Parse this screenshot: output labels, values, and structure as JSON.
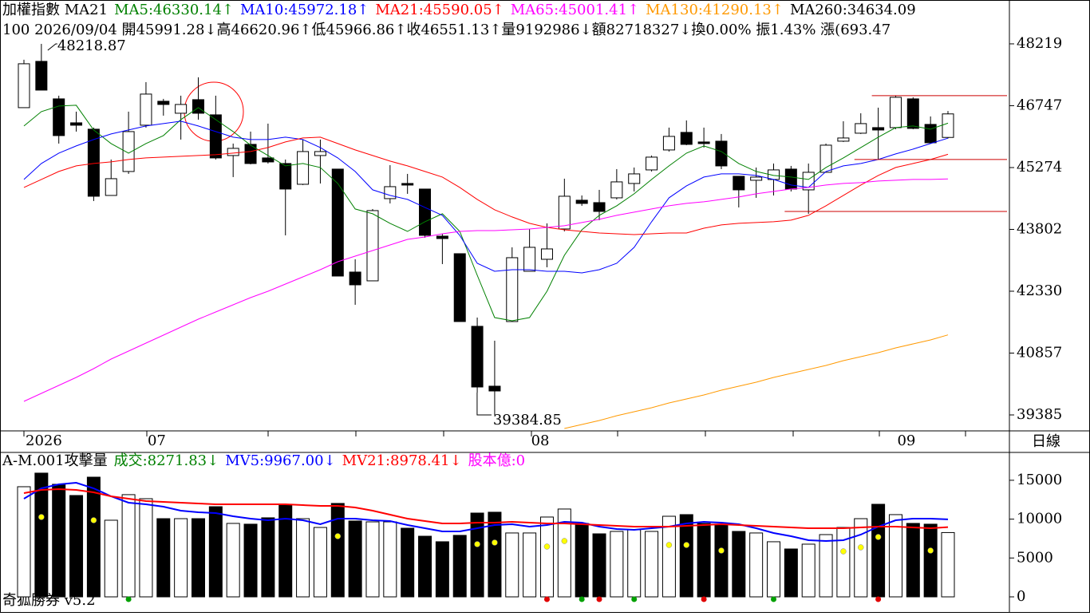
{
  "header": {
    "line1": [
      {
        "text": "加權指數 MA21",
        "color": "#000000"
      },
      {
        "text": "MA5:46330.14↑",
        "color": "#008000"
      },
      {
        "text": "MA10:45972.18↑",
        "color": "#0000ff"
      },
      {
        "text": "MA21:45590.05↑",
        "color": "#ff0000"
      },
      {
        "text": "MA65:45001.41↑",
        "color": "#ff00ff"
      },
      {
        "text": "MA130:41290.13↑",
        "color": "#ff9900"
      },
      {
        "text": "MA260:34634.09",
        "color": "#000000"
      }
    ],
    "line2": "100 2026/09/04 開45991.28↓高46620.96↑低45966.86↑收46551.13↑量9192986↓額82718327↓換0.00% 振1.43% 漲(693.47"
  },
  "period_label": "日線",
  "footer": "奇狐勝券 v5.2",
  "chart_data": [
    {
      "type": "candlestick",
      "categories": [
        "2026",
        null,
        null,
        null,
        null,
        null,
        null,
        "07",
        null,
        null,
        null,
        null,
        null,
        null,
        null,
        null,
        null,
        null,
        null,
        null,
        null,
        null,
        null,
        null,
        null,
        null,
        null,
        null,
        null,
        "08",
        null,
        null,
        null,
        null,
        null,
        null,
        null,
        null,
        null,
        null,
        null,
        null,
        null,
        null,
        null,
        null,
        null,
        null,
        null,
        null,
        "09",
        null,
        null,
        null
      ],
      "open": [
        46700,
        47802,
        46909,
        46339,
        46187,
        44610,
        45180,
        46282,
        46852,
        46567,
        46890,
        46529,
        45560,
        45826,
        45503,
        45370,
        44876,
        45560,
        45237,
        42786,
        42577,
        44534,
        44895,
        44762,
        43641,
        43223,
        41494,
        40069,
        41608,
        42805,
        43090,
        43812,
        44496,
        44439,
        44553,
        44895,
        45218,
        45693,
        46111,
        45883,
        45902,
        45066,
        44971,
        44990,
        45237,
        44743,
        45161,
        45902,
        46092,
        46225,
        46225,
        46909,
        46301,
        45991.28
      ],
      "high": [
        47840,
        48218.87,
        46985,
        46605,
        46225,
        45465,
        46605,
        47308,
        46909,
        46985,
        47422,
        46985,
        45845,
        46130,
        46320,
        45465,
        45940,
        45940,
        45237,
        43090,
        44287,
        45332,
        45123,
        44762,
        43698,
        43223,
        41703,
        41152,
        43375,
        43812,
        43945,
        45009,
        44610,
        44743,
        45237,
        45275,
        45560,
        46225,
        46396,
        46225,
        46073,
        45066,
        45275,
        45370,
        45313,
        45370,
        45845,
        46377,
        46567,
        46700,
        46985,
        46947,
        46491,
        46620.96
      ],
      "low": [
        46700,
        47118,
        45845,
        46130,
        44477,
        44610,
        45123,
        46225,
        46510,
        45940,
        46415,
        45465,
        45047,
        45351,
        45370,
        43660,
        44857,
        44895,
        42691,
        42007,
        42577,
        44420,
        44648,
        43603,
        42976,
        41608,
        39917,
        39384.85,
        41608,
        42805,
        42900,
        43755,
        44363,
        44021,
        44515,
        44705,
        45180,
        45655,
        45807,
        45750,
        45237,
        44325,
        44553,
        44610,
        44705,
        44173,
        45161,
        45883,
        46073,
        45465,
        46187,
        46187,
        45845,
        45966.86
      ],
      "close": [
        47745,
        47118,
        46035,
        46282,
        44591,
        45009,
        46130,
        47023,
        46776,
        46776,
        46567,
        45503,
        45731,
        45370,
        45408,
        44762,
        45655,
        45655,
        42691,
        42482,
        44249,
        44819,
        44857,
        43660,
        43584,
        41608,
        40050,
        39955,
        43128,
        43375,
        43337,
        44591,
        44420,
        44230,
        44933,
        45123,
        45522,
        46016,
        45826,
        45845,
        45313,
        44743,
        45047,
        45218,
        44762,
        45161,
        45807,
        45978,
        46320,
        46168,
        46947,
        46206,
        45864,
        46551.13
      ],
      "series": [
        {
          "name": "MA5",
          "color": "#008000",
          "values": [
            46263,
            46605,
            46738,
            46757,
            46168,
            45845,
            45617,
            45845,
            46035,
            46415,
            46700,
            46415,
            46130,
            45807,
            45560,
            45313,
            45370,
            45275,
            44895,
            44287,
            44173,
            43945,
            43755,
            43983,
            44173,
            43755,
            42710,
            41703,
            41627,
            41703,
            42330,
            43185,
            43793,
            44135,
            44363,
            44648,
            44990,
            45313,
            45617,
            45788,
            45655,
            45370,
            45180,
            45085,
            45047,
            44990,
            45275,
            45503,
            45750,
            45997,
            46225,
            46263,
            46187,
            46330.14
          ]
        },
        {
          "name": "MA10",
          "color": "#0000ff",
          "values": [
            44990,
            45370,
            45617,
            45788,
            45940,
            46073,
            46168,
            46263,
            46320,
            46377,
            46263,
            46130,
            45997,
            45940,
            45940,
            45997,
            45940,
            45750,
            45503,
            45180,
            44743,
            44610,
            44515,
            44325,
            44135,
            43660,
            42995,
            42805,
            42843,
            42843,
            42805,
            42805,
            42767,
            42843,
            42995,
            43375,
            43983,
            44553,
            44838,
            45047,
            45123,
            45123,
            45085,
            44990,
            44857,
            44800,
            45180,
            45313,
            45370,
            45465,
            45598,
            45712,
            45845,
            45972.18
          ]
        },
        {
          "name": "MA21",
          "color": "#ff0000",
          "values": [
            44800,
            44990,
            45180,
            45313,
            45370,
            45408,
            45465,
            45503,
            45522,
            45541,
            45560,
            45579,
            45617,
            45655,
            45750,
            45883,
            45978,
            45997,
            45845,
            45693,
            45560,
            45427,
            45313,
            45180,
            45047,
            44800,
            44515,
            44268,
            44097,
            43945,
            43850,
            43793,
            43755,
            43717,
            43698,
            43679,
            43698,
            43717,
            43717,
            43831,
            43907,
            43945,
            43964,
            43983,
            44021,
            44135,
            44363,
            44610,
            44857,
            45085,
            45275,
            45370,
            45465,
            45590.05
          ]
        },
        {
          "name": "MA65",
          "color": "#ff00ff",
          "values": [
            39708,
            39898,
            40088,
            40278,
            40487,
            40715,
            40905,
            41095,
            41285,
            41475,
            41665,
            41836,
            42007,
            42178,
            42330,
            42501,
            42672,
            42843,
            43033,
            43166,
            43299,
            43432,
            43565,
            43622,
            43698,
            43755,
            43774,
            43774,
            43793,
            43812,
            43850,
            43888,
            43964,
            44040,
            44135,
            44211,
            44287,
            44363,
            44420,
            44458,
            44515,
            44572,
            44648,
            44705,
            44762,
            44800,
            44857,
            44895,
            44914,
            44952,
            44971,
            44990,
            44990,
            45001.41
          ]
        },
        {
          "name": "MA130",
          "color": "#ff9900",
          "values": [
            null,
            null,
            null,
            null,
            null,
            null,
            null,
            null,
            null,
            null,
            null,
            null,
            null,
            null,
            null,
            null,
            null,
            null,
            null,
            null,
            null,
            null,
            null,
            null,
            null,
            null,
            null,
            null,
            null,
            null,
            null,
            39062,
            39157,
            39252,
            39366,
            39461,
            39556,
            39670,
            39765,
            39860,
            39974,
            40069,
            40164,
            40278,
            40373,
            40468,
            40563,
            40677,
            40772,
            40867,
            40981,
            41076,
            41171,
            41290.13
          ]
        }
      ],
      "hlines": [
        {
          "value": 46985,
          "from": 49,
          "color": "#cc0000"
        },
        {
          "value": 45465,
          "from": 48,
          "color": "#cc0000"
        },
        {
          "value": 44230,
          "from": 44,
          "color": "#cc0000"
        }
      ],
      "up_color": "#ffffff",
      "down_color": "#000000",
      "ylim": [
        39005,
        49263
      ],
      "yticks": [
        39385,
        40857,
        42330,
        43802,
        45274,
        46747,
        48219
      ]
    },
    {
      "type": "bar",
      "header": [
        {
          "text": "A-M.001攻擊量",
          "color": "#000000"
        },
        {
          "text": "成交:8271.83↓",
          "color": "#008000"
        },
        {
          "text": "MV5:9967.00↓",
          "color": "#0000ff"
        },
        {
          "text": "MV21:8978.41↓",
          "color": "#ff0000"
        },
        {
          "text": "股本億:0",
          "color": "#ff00ff"
        }
      ],
      "values": [
        14170,
        15920,
        14480,
        13040,
        15400,
        9860,
        13150,
        12630,
        10060,
        10060,
        10060,
        11600,
        9450,
        9350,
        10170,
        11810,
        10060,
        8930,
        12020,
        9760,
        9650,
        9650,
        8830,
        7800,
        7090,
        7910,
        10780,
        10890,
        8220,
        8220,
        10270,
        11300,
        9450,
        8110,
        8420,
        8630,
        8420,
        10370,
        10580,
        9450,
        9350,
        8420,
        8220,
        7090,
        6160,
        6780,
        8010,
        8930,
        10060,
        11910,
        10580,
        9450,
        9350,
        8271.83
      ],
      "series": [
        {
          "name": "MV5",
          "color": "#0000ff",
          "values": [
            12632,
            13967,
            14481,
            14686,
            13967,
            12940,
            12119,
            11913,
            11605,
            11092,
            10886,
            10784,
            10373,
            10065,
            9859,
            10065,
            9859,
            9346,
            10065,
            10065,
            9859,
            9757,
            9243,
            8832,
            8421,
            8421,
            8832,
            9243,
            9346,
            9038,
            9243,
            9654,
            9551,
            9038,
            8730,
            8627,
            8832,
            9038,
            9448,
            9654,
            9551,
            9346,
            8832,
            8216,
            7805,
            7292,
            7189,
            7292,
            8011,
            9038,
            9859,
            10065,
            10065,
            9967
          ]
        },
        {
          "name": "MV21",
          "color": "#ff0000",
          "values": [
            13351,
            13762,
            13865,
            13762,
            13454,
            12940,
            12632,
            12324,
            12221,
            12119,
            12016,
            11913,
            11913,
            11913,
            11913,
            11913,
            11811,
            11708,
            11708,
            11502,
            11092,
            10578,
            10065,
            9757,
            9448,
            9448,
            9551,
            9551,
            9654,
            9551,
            9448,
            9448,
            9346,
            9243,
            9140,
            9038,
            9038,
            9038,
            9140,
            9243,
            9346,
            9243,
            9140,
            9038,
            8935,
            8832,
            8832,
            8832,
            8935,
            9038,
            9038,
            8935,
            8832,
            8978.41
          ]
        }
      ],
      "dots": {
        "color": "#ffff00",
        "values": [
          null,
          10270,
          null,
          null,
          9859,
          null,
          null,
          null,
          null,
          null,
          null,
          null,
          null,
          null,
          null,
          null,
          null,
          null,
          7805,
          null,
          null,
          null,
          null,
          null,
          null,
          null,
          6778,
          6984,
          null,
          null,
          6470,
          7189,
          null,
          null,
          null,
          null,
          null,
          6676,
          6676,
          null,
          5957,
          null,
          null,
          null,
          null,
          null,
          null,
          5854,
          6367,
          7703,
          null,
          null,
          5957,
          null
        ]
      },
      "markers": [
        {
          "index": 6,
          "color": "#00a000"
        },
        {
          "index": 30,
          "color": "#e00000"
        },
        {
          "index": 32,
          "color": "#00a000"
        },
        {
          "index": 33,
          "color": "#e00000"
        },
        {
          "index": 35,
          "color": "#00a000"
        },
        {
          "index": 39,
          "color": "#e00000"
        },
        {
          "index": 43,
          "color": "#00a000"
        },
        {
          "index": 49,
          "color": "#e00000"
        }
      ],
      "ylim": [
        -1745,
        18583
      ],
      "yticks": [
        0,
        5000,
        10000,
        15000
      ]
    }
  ]
}
